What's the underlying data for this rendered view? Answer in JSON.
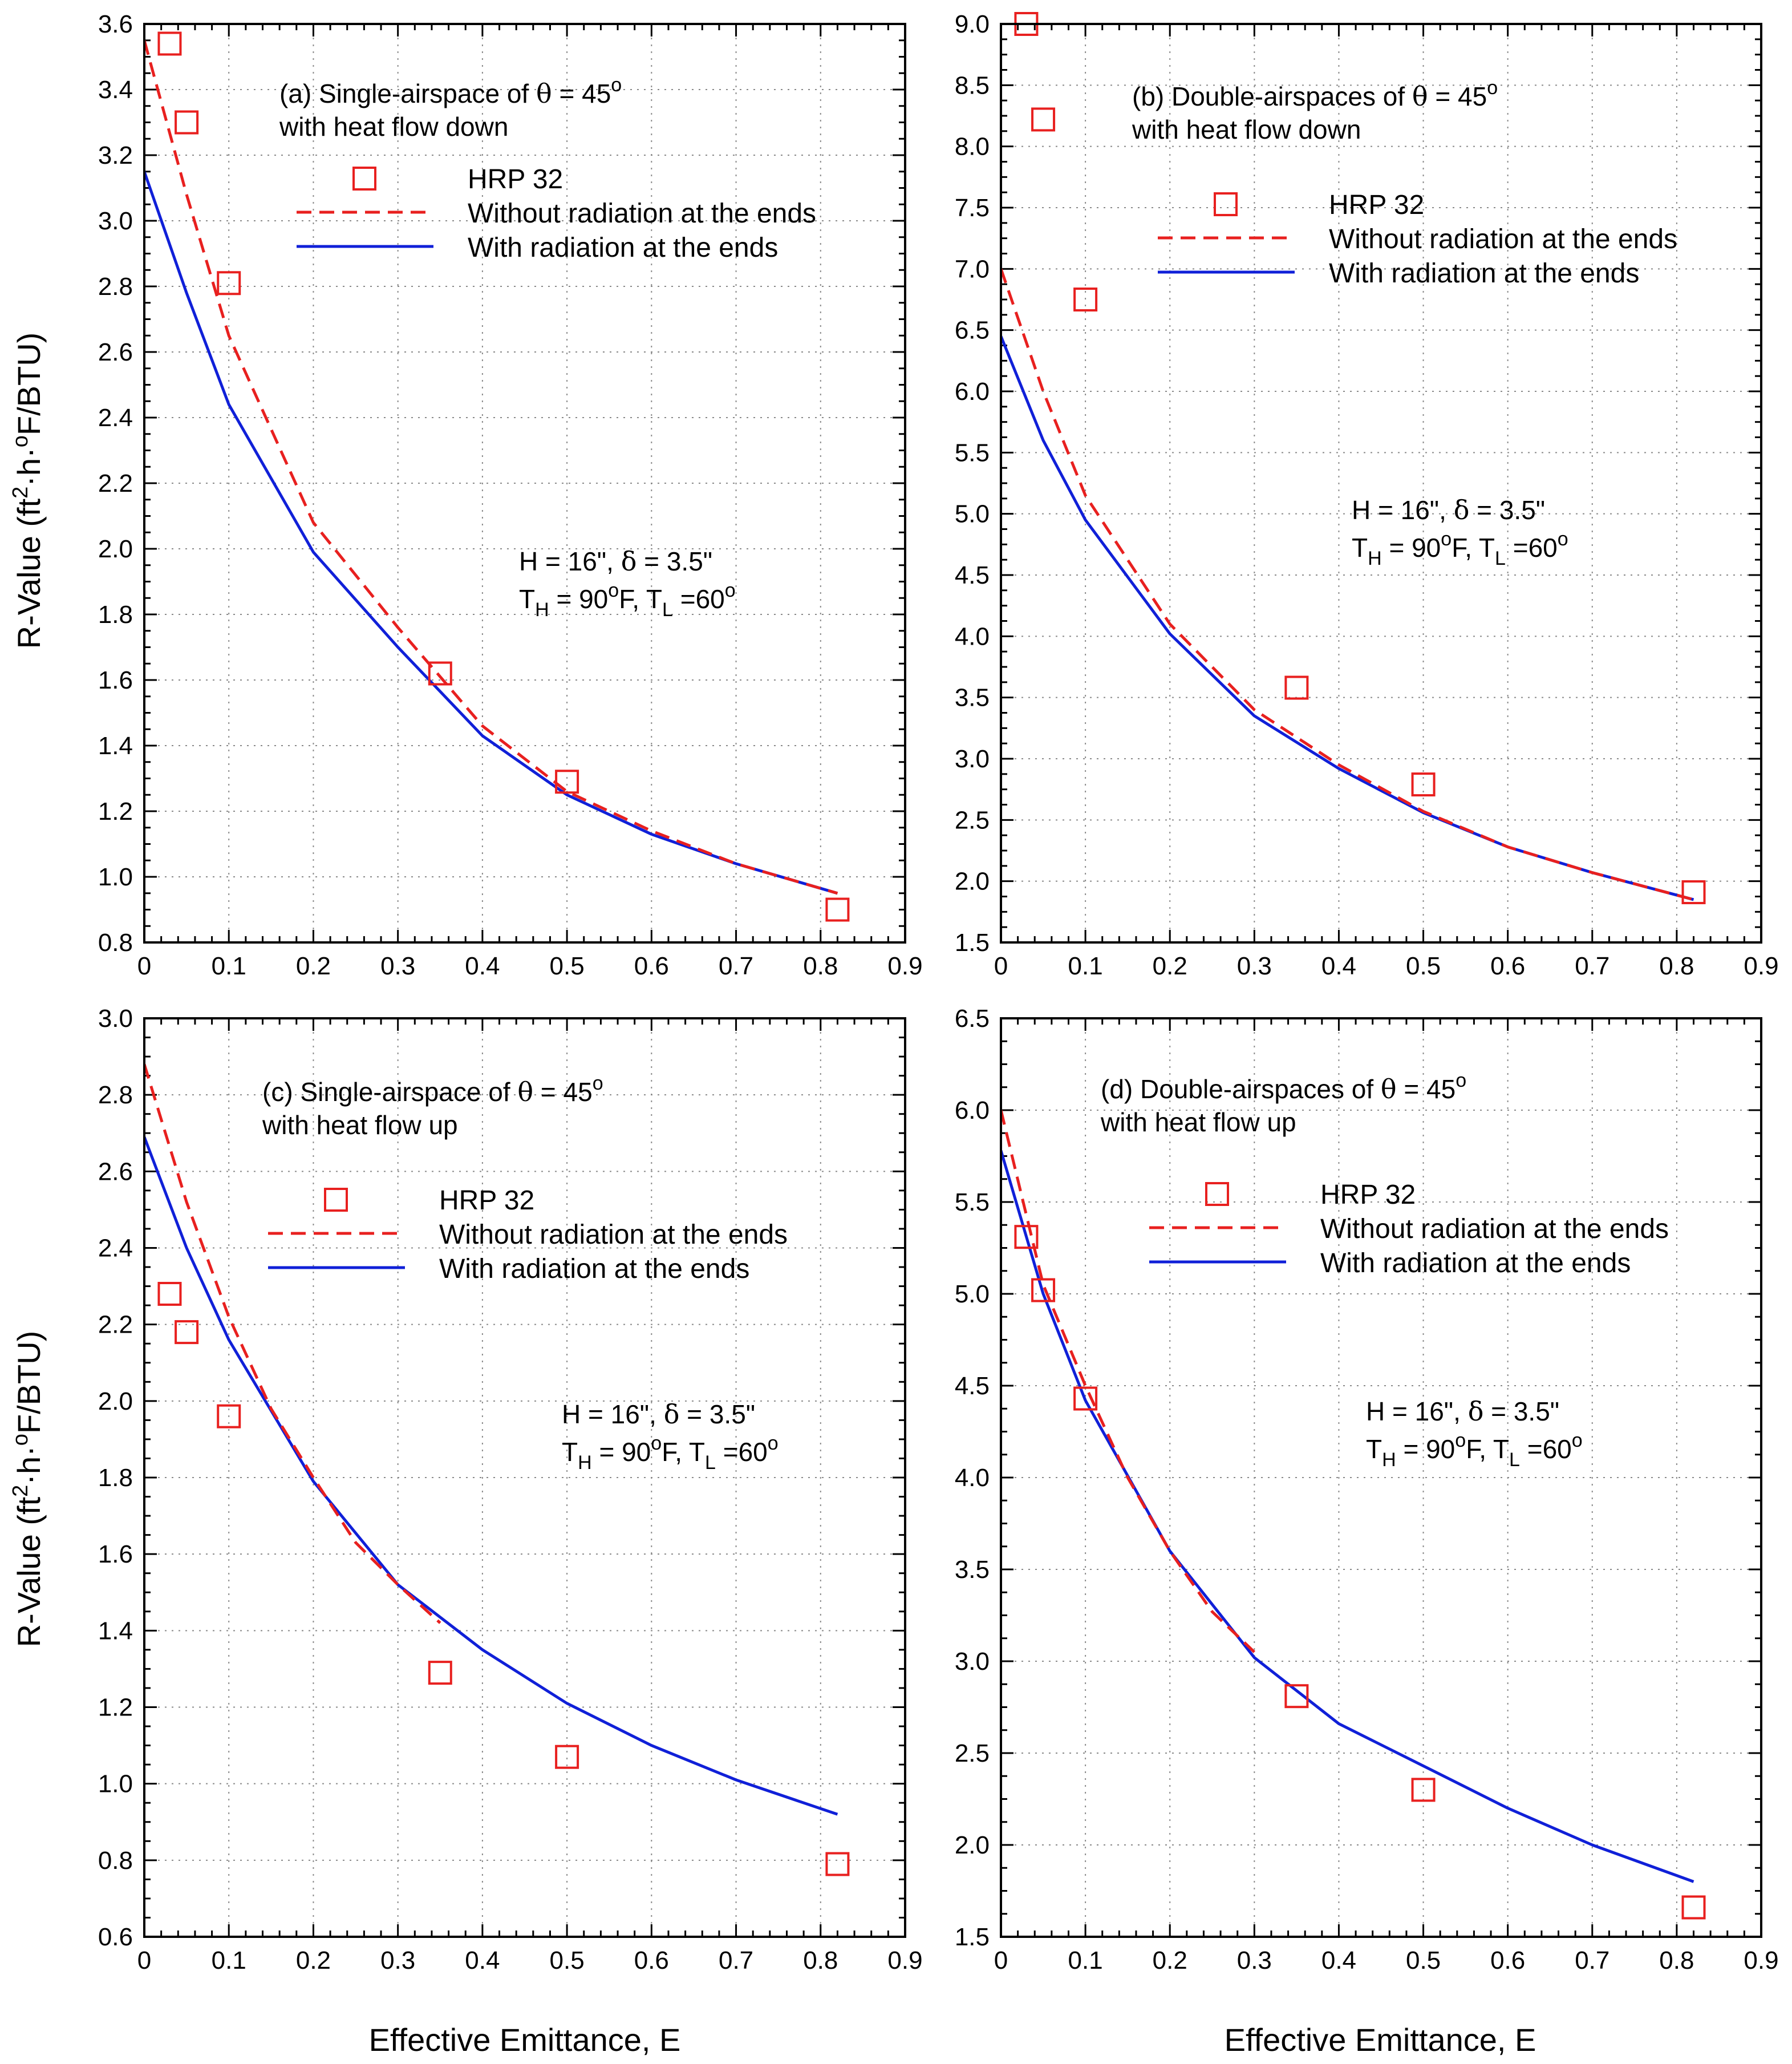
{
  "figure": {
    "xlabel": "Effective Emittance, E",
    "ylabel_parts": [
      "R-Value (ft",
      "2",
      "·h·",
      "o",
      "F/BTU)"
    ]
  },
  "legend": {
    "hrp": "HRP 32",
    "without": "Without radiation at the ends",
    "with": "With radiation at the ends"
  },
  "colors": {
    "hrp": "#e8201f",
    "without": "#e8201f",
    "with": "#1020d8",
    "grid": "#8a8a8a"
  },
  "chart_data": [
    {
      "id": "a",
      "type": "line",
      "title_line1": "(a) Single-airspace of",
      "theta": "θ",
      "title_eq": " = 45",
      "deg": "o",
      "title_line2": "with heat flow down",
      "params_line1": "H = 16\", ",
      "delta": "δ",
      "params_eq": " = 3.5\"",
      "th_T": "T",
      "th_H": "H",
      "th_eq": " = 90",
      "th_o": "o",
      "th_F": "F, ",
      "tl_T": "T",
      "tl_L": "L",
      "tl_eq": " =60",
      "tl_o": "o",
      "xlim": [
        0,
        0.9
      ],
      "xticks": [
        "0",
        "0.1",
        "0.2",
        "0.3",
        "0.4",
        "0.5",
        "0.6",
        "0.7",
        "0.8",
        "0.9"
      ],
      "ylim": [
        0.8,
        3.6
      ],
      "yticks": [
        "0.8",
        "1.0",
        "1.2",
        "1.4",
        "1.6",
        "1.8",
        "2.0",
        "2.2",
        "2.4",
        "2.6",
        "2.8",
        "3.0",
        "3.2",
        "3.4",
        "3.6"
      ],
      "hrp32": [
        [
          0.03,
          3.54
        ],
        [
          0.05,
          3.3
        ],
        [
          0.1,
          2.81
        ],
        [
          0.35,
          1.62
        ],
        [
          0.5,
          1.29
        ],
        [
          0.82,
          0.9
        ]
      ],
      "without_radiation": {
        "x": [
          0.0,
          0.05,
          0.1,
          0.2,
          0.3,
          0.4,
          0.5,
          0.6,
          0.7,
          0.82
        ],
        "y": [
          3.55,
          3.08,
          2.65,
          2.08,
          1.76,
          1.46,
          1.26,
          1.14,
          1.04,
          0.95
        ]
      },
      "with_radiation": {
        "x": [
          0.0,
          0.05,
          0.1,
          0.2,
          0.3,
          0.4,
          0.5,
          0.6,
          0.7,
          0.82
        ],
        "y": [
          3.15,
          2.78,
          2.44,
          1.99,
          1.7,
          1.43,
          1.25,
          1.13,
          1.04,
          0.95
        ]
      }
    },
    {
      "id": "b",
      "type": "line",
      "title_line1": "(b) Double-airspaces of",
      "theta": "θ",
      "title_eq": " = 45",
      "deg": "o",
      "title_line2": "with heat flow down",
      "params_line1": "H = 16\", ",
      "delta": "δ",
      "params_eq": " = 3.5\"",
      "th_T": "T",
      "th_H": "H",
      "th_eq": " = 90",
      "th_o": "o",
      "th_F": "F, ",
      "tl_T": "T",
      "tl_L": "L",
      "tl_eq": " =60",
      "tl_o": "o",
      "xlim": [
        0,
        0.9
      ],
      "xticks": [
        "0",
        "0.1",
        "0.2",
        "0.3",
        "0.4",
        "0.5",
        "0.6",
        "0.7",
        "0.8",
        "0.9"
      ],
      "ylim": [
        1.5,
        9.0
      ],
      "yticks": [
        "1.5",
        "2.0",
        "2.5",
        "3.0",
        "3.5",
        "4.0",
        "4.5",
        "5.0",
        "5.5",
        "6.0",
        "6.5",
        "7.0",
        "7.5",
        "8.0",
        "8.5",
        "9.0"
      ],
      "hrp32": [
        [
          0.03,
          9.0
        ],
        [
          0.05,
          8.22
        ],
        [
          0.1,
          6.75
        ],
        [
          0.35,
          3.58
        ],
        [
          0.5,
          2.79
        ],
        [
          0.82,
          1.91
        ]
      ],
      "without_radiation": {
        "x": [
          0.0,
          0.05,
          0.1,
          0.2,
          0.3,
          0.4,
          0.5,
          0.6,
          0.7,
          0.82
        ],
        "y": [
          7.0,
          6.0,
          5.15,
          4.1,
          3.4,
          2.95,
          2.57,
          2.28,
          2.07,
          1.85
        ]
      },
      "with_radiation": {
        "x": [
          0.0,
          0.05,
          0.1,
          0.2,
          0.3,
          0.4,
          0.5,
          0.6,
          0.7,
          0.82
        ],
        "y": [
          6.45,
          5.6,
          4.95,
          4.02,
          3.35,
          2.92,
          2.56,
          2.28,
          2.07,
          1.85
        ]
      }
    },
    {
      "id": "c",
      "type": "line",
      "title_line1": "(c) Single-airspace of",
      "theta": "θ",
      "title_eq": " = 45",
      "deg": "o",
      "title_line2": "with heat flow up",
      "params_line1": "H = 16\", ",
      "delta": "δ",
      "params_eq": " = 3.5\"",
      "th_T": "T",
      "th_H": "H",
      "th_eq": " = 90",
      "th_o": "o",
      "th_F": "F, ",
      "tl_T": "T",
      "tl_L": "L",
      "tl_eq": " =60",
      "tl_o": "o",
      "xlim": [
        0,
        0.9
      ],
      "xticks": [
        "0",
        "0.1",
        "0.2",
        "0.3",
        "0.4",
        "0.5",
        "0.6",
        "0.7",
        "0.8",
        "0.9"
      ],
      "ylim": [
        0.6,
        3.0
      ],
      "yticks": [
        "0.6",
        "0.8",
        "1.0",
        "1.2",
        "1.4",
        "1.6",
        "1.8",
        "2.0",
        "2.2",
        "2.4",
        "2.6",
        "2.8",
        "3.0"
      ],
      "hrp32": [
        [
          0.03,
          2.28
        ],
        [
          0.05,
          2.18
        ],
        [
          0.1,
          1.96
        ],
        [
          0.35,
          1.29
        ],
        [
          0.5,
          1.07
        ],
        [
          0.82,
          0.79
        ]
      ],
      "without_radiation": {
        "x": [
          0.0,
          0.05,
          0.1,
          0.15,
          0.2,
          0.25,
          0.3,
          0.35
        ],
        "y": [
          2.88,
          2.52,
          2.22,
          1.98,
          1.8,
          1.63,
          1.52,
          1.42
        ]
      },
      "with_radiation": {
        "x": [
          0.0,
          0.05,
          0.1,
          0.2,
          0.3,
          0.4,
          0.5,
          0.6,
          0.7,
          0.82
        ],
        "y": [
          2.69,
          2.4,
          2.16,
          1.79,
          1.52,
          1.35,
          1.21,
          1.1,
          1.01,
          0.92
        ]
      }
    },
    {
      "id": "d",
      "type": "line",
      "title_line1": "(d) Double-airspaces of",
      "theta": "θ",
      "title_eq": " = 45",
      "deg": "o",
      "title_line2": "with heat flow up",
      "params_line1": "H = 16\", ",
      "delta": "δ",
      "params_eq": " = 3.5\"",
      "th_T": "T",
      "th_H": "H",
      "th_eq": " = 90",
      "th_o": "o",
      "th_F": "F, ",
      "tl_T": "T",
      "tl_L": "L",
      "tl_eq": " =60",
      "tl_o": "o",
      "xlim": [
        0,
        0.9
      ],
      "xticks": [
        "0",
        "0.1",
        "0.2",
        "0.3",
        "0.4",
        "0.5",
        "0.6",
        "0.7",
        "0.8",
        "0.9"
      ],
      "ylim": [
        1.5,
        6.5
      ],
      "yticks": [
        "1.5",
        "2.0",
        "2.5",
        "3.0",
        "3.5",
        "4.0",
        "4.5",
        "5.0",
        "5.5",
        "6.0",
        "6.5"
      ],
      "hrp32": [
        [
          0.03,
          5.31
        ],
        [
          0.05,
          5.02
        ],
        [
          0.1,
          4.43
        ],
        [
          0.35,
          2.81
        ],
        [
          0.5,
          2.3
        ],
        [
          0.82,
          1.66
        ]
      ],
      "without_radiation": {
        "x": [
          0.0,
          0.05,
          0.1,
          0.15,
          0.2,
          0.25,
          0.3
        ],
        "y": [
          6.0,
          5.05,
          4.5,
          4.0,
          3.6,
          3.27,
          3.05
        ]
      },
      "with_radiation": {
        "x": [
          0.0,
          0.05,
          0.1,
          0.2,
          0.3,
          0.4,
          0.5,
          0.6,
          0.7,
          0.82
        ],
        "y": [
          5.78,
          5.0,
          4.42,
          3.6,
          3.02,
          2.66,
          2.43,
          2.2,
          2.0,
          1.8
        ]
      }
    }
  ]
}
